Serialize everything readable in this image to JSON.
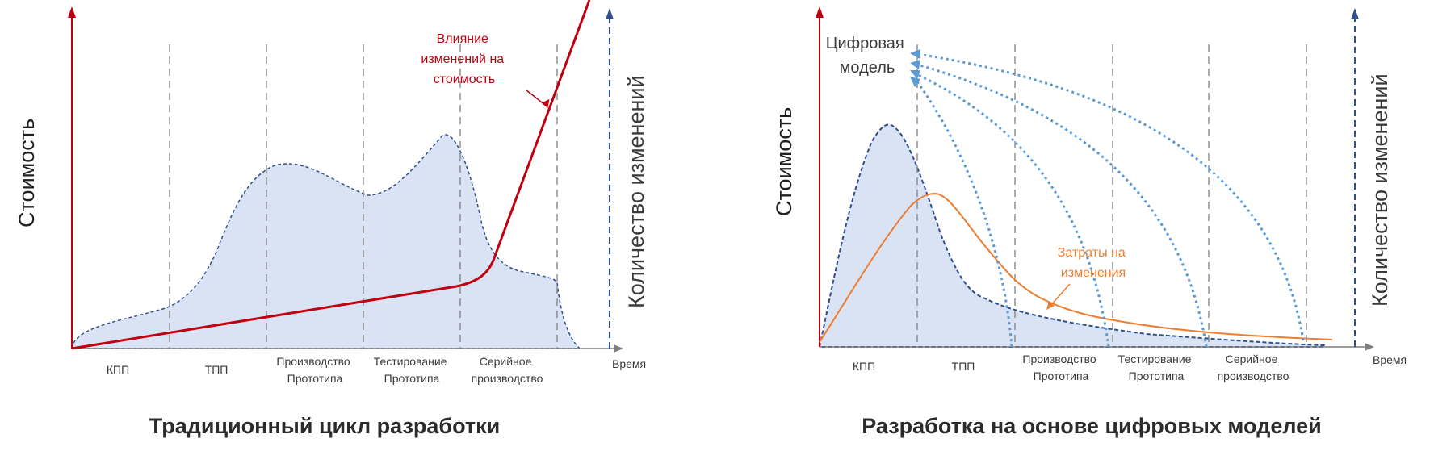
{
  "colors": {
    "red": "#c0000f",
    "navy": "#2f4f8f",
    "fill": "#dae3f3",
    "orange": "#ed7d31",
    "lightblue": "#5b9bd5",
    "gray": "#7f7f7f"
  },
  "shared": {
    "y_label": "Стоимость",
    "y2_label": "Количество изменений",
    "time_label": "Время",
    "phases": [
      [
        "КПП"
      ],
      [
        "ТПП"
      ],
      [
        "Производство",
        "Прототипа"
      ],
      [
        "Тестирование",
        "Прототипа"
      ],
      [
        "Серийное",
        "производство"
      ]
    ]
  },
  "left": {
    "title": "Традиционный цикл разработки",
    "annotation": [
      "Влияние",
      "изменений на",
      "стоимость"
    ]
  },
  "right": {
    "title": "Разработка на основе цифровых моделей",
    "digital_model": [
      "Цифровая",
      "модель"
    ],
    "annotation": [
      "Затраты на",
      "изменения"
    ]
  }
}
